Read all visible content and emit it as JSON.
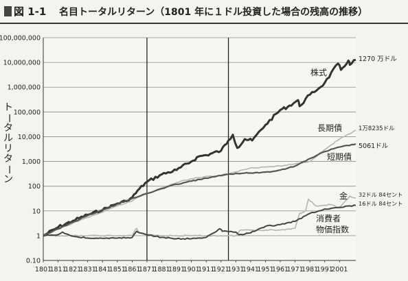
{
  "figure": {
    "number": "図 1-1",
    "title": "名目トータルリターン（1801 年に１ドル投資した場合の残高の推移）"
  },
  "chart_data": {
    "type": "line",
    "ylabel": "トータルリターン",
    "xlabel": "",
    "yscale": "log",
    "ylim": [
      0.1,
      100000000
    ],
    "xlim": [
      1801,
      2012
    ],
    "y_ticks": [
      "100,000,000",
      "10,000,000",
      "1,000,000",
      "100,000",
      "10,000",
      "1,000",
      "100",
      "10",
      "1",
      "0.10"
    ],
    "x_ticks": [
      "1801",
      "1811",
      "1821",
      "1831",
      "1841",
      "1851",
      "1861",
      "1871",
      "1881",
      "1891",
      "1901",
      "1911",
      "1921",
      "1931",
      "1941",
      "1951",
      "1961",
      "1971",
      "1981",
      "1991",
      "2001"
    ],
    "grid": "horizontal",
    "vertical_lines": [
      1871,
      1926
    ],
    "series": [
      {
        "name": "株式",
        "end_label": "1270 万ドル",
        "color": "#333333",
        "width": 3,
        "x": [
          1801,
          1811,
          1821,
          1831,
          1841,
          1851,
          1857,
          1861,
          1866,
          1871,
          1881,
          1891,
          1901,
          1906,
          1911,
          1921,
          1926,
          1929,
          1932,
          1937,
          1942,
          1951,
          1961,
          1966,
          1971,
          1973,
          1974,
          1981,
          1987,
          1991,
          2000,
          2002,
          2007,
          2008,
          2012
        ],
        "y": [
          1,
          2.2,
          4,
          7,
          11,
          20,
          25,
          35,
          80,
          150,
          300,
          450,
          1000,
          1600,
          1800,
          2700,
          7000,
          12000,
          3500,
          8000,
          7000,
          30000,
          120000,
          160000,
          250000,
          300000,
          170000,
          500000,
          900000,
          1500000,
          9000000,
          5000000,
          12000000,
          8000000,
          12700000
        ]
      },
      {
        "name": "長期債",
        "end_label": "1万8235ドル",
        "color": "#b4b4b4",
        "width": 1.6,
        "x": [
          1801,
          1811,
          1821,
          1831,
          1841,
          1851,
          1861,
          1864,
          1871,
          1881,
          1891,
          1901,
          1911,
          1921,
          1926,
          1931,
          1941,
          1951,
          1961,
          1971,
          1981,
          1991,
          2001,
          2012
        ],
        "y": [
          1,
          1.8,
          3.2,
          5.5,
          9,
          16,
          25,
          35,
          50,
          85,
          140,
          200,
          250,
          260,
          300,
          380,
          550,
          600,
          650,
          800,
          1000,
          3000,
          8000,
          18235
        ]
      },
      {
        "name": "短期債",
        "end_label": "5061ドル",
        "color": "#555555",
        "width": 2.2,
        "x": [
          1801,
          1811,
          1821,
          1831,
          1841,
          1851,
          1861,
          1871,
          1881,
          1891,
          1901,
          1911,
          1921,
          1931,
          1941,
          1951,
          1961,
          1971,
          1981,
          1991,
          2001,
          2012
        ],
        "y": [
          1,
          1.9,
          3.5,
          6.5,
          11,
          19,
          32,
          50,
          80,
          120,
          160,
          210,
          270,
          330,
          340,
          370,
          450,
          650,
          1300,
          2500,
          3800,
          5061
        ]
      },
      {
        "name": "金",
        "end_label": "32ドル 84セント",
        "color": "#b4b4b4",
        "width": 1.6,
        "x": [
          1801,
          1811,
          1821,
          1831,
          1841,
          1851,
          1861,
          1862,
          1864,
          1866,
          1871,
          1881,
          1891,
          1901,
          1911,
          1921,
          1931,
          1934,
          1951,
          1961,
          1971,
          1974,
          1978,
          1980,
          1985,
          1995,
          2001,
          2008,
          2012
        ],
        "y": [
          1,
          1,
          1,
          1,
          1,
          1,
          1,
          1.3,
          2,
          1.3,
          1.1,
          1,
          1,
          1,
          1,
          1,
          1,
          1.69,
          1.69,
          1.69,
          2,
          8,
          10,
          30,
          16,
          18,
          13,
          40,
          32.84
        ]
      },
      {
        "name": "消費者物価指数",
        "name_lines": [
          "消費者",
          "物価指数"
        ],
        "end_label": "16ドル 84セント",
        "color": "#444444",
        "width": 2,
        "x": [
          1801,
          1811,
          1814,
          1816,
          1821,
          1831,
          1841,
          1851,
          1861,
          1864,
          1866,
          1871,
          1881,
          1891,
          1901,
          1911,
          1918,
          1920,
          1922,
          1931,
          1933,
          1941,
          1946,
          1951,
          1961,
          1971,
          1981,
          1991,
          2001,
          2012
        ],
        "y": [
          1,
          1.1,
          1.4,
          1.2,
          0.95,
          0.8,
          0.78,
          0.8,
          0.85,
          1.5,
          1.3,
          1.1,
          0.85,
          0.75,
          0.75,
          0.85,
          1.5,
          1.9,
          1.5,
          1.4,
          1.1,
          1.3,
          1.8,
          2.4,
          2.8,
          3.8,
          8,
          12,
          14,
          16.84
        ]
      }
    ]
  }
}
